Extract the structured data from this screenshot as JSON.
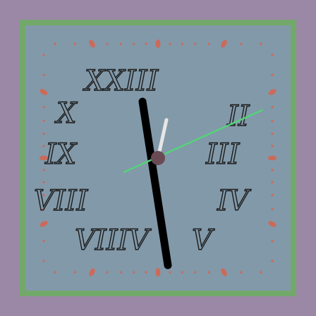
{
  "clock": {
    "numerals": [
      "XXIII",
      "II",
      "III",
      "IV",
      "V",
      "VIIIV",
      "VIII",
      "IX",
      "X"
    ],
    "hands": {
      "hour_hand": "black",
      "minute_hand": "white",
      "second_hand": "green"
    }
  },
  "colors": {
    "background": "#9b87a6",
    "frame_border": "#72a86a",
    "face": "#8299a9",
    "tick_color": "#cc6a5a",
    "hour_hand": "#000000",
    "minute_hand": "#e6e6e6",
    "second_hand": "#55d27a",
    "center_cap": "#6a4a55",
    "numeral_stroke": "#1b1b1b"
  }
}
